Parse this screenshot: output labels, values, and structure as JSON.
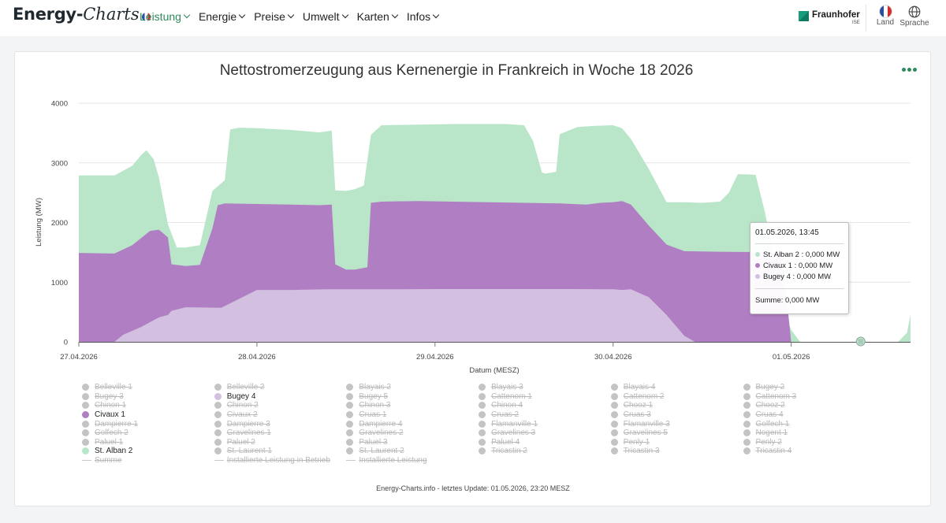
{
  "nav": {
    "logo_bold": "Energy-",
    "logo_italic": "Charts",
    "menu": [
      {
        "label": "Leistung",
        "active": true
      },
      {
        "label": "Energie",
        "active": false
      },
      {
        "label": "Preise",
        "active": false
      },
      {
        "label": "Umwelt",
        "active": false
      },
      {
        "label": "Karten",
        "active": false
      },
      {
        "label": "Infos",
        "active": false
      }
    ],
    "brand": "Fraunhofer",
    "brand_sub": "ISE",
    "land_label": "Land",
    "language_label": "Sprache"
  },
  "colors": {
    "accent": "#2e8a5c",
    "st_alban_2": "#b9e6c9",
    "civaux_1": "#b07ec2",
    "bugey_4": "#d3bfe0",
    "legend_off": "#c4c4c4"
  },
  "chart_data": {
    "type": "area",
    "stacked": true,
    "title": "Nettostromerzeugung aus Kernenergie in Frankreich in Woche 18 2026",
    "xlabel": "Datum (MESZ)",
    "ylabel": "Leistung (MW)",
    "ylim": [
      0,
      4000
    ],
    "yticks": [
      0,
      1000,
      2000,
      3000,
      4000
    ],
    "xlim": [
      0,
      4.67
    ],
    "xticks": [
      {
        "v": 0,
        "label": "27.04.2026"
      },
      {
        "v": 1,
        "label": "28.04.2026"
      },
      {
        "v": 2,
        "label": "29.04.2026"
      },
      {
        "v": 3,
        "label": "30.04.2026"
      },
      {
        "v": 4,
        "label": "01.05.2026"
      }
    ],
    "grid": true,
    "series": [
      {
        "name": "Bugey 4",
        "color": "#d3bfe0",
        "points": [
          [
            0,
            0
          ],
          [
            0.2,
            0
          ],
          [
            0.25,
            120
          ],
          [
            0.35,
            250
          ],
          [
            0.45,
            410
          ],
          [
            0.5,
            450
          ],
          [
            0.52,
            520
          ],
          [
            0.6,
            580
          ],
          [
            0.8,
            570
          ],
          [
            1.0,
            870
          ],
          [
            1.2,
            870
          ],
          [
            1.4,
            880
          ],
          [
            1.6,
            880
          ],
          [
            1.8,
            880
          ],
          [
            2.0,
            885
          ],
          [
            2.2,
            885
          ],
          [
            2.4,
            885
          ],
          [
            2.6,
            885
          ],
          [
            2.8,
            885
          ],
          [
            3.0,
            880
          ],
          [
            3.05,
            870
          ],
          [
            3.1,
            880
          ],
          [
            3.2,
            750
          ],
          [
            3.3,
            450
          ],
          [
            3.4,
            100
          ],
          [
            3.46,
            0
          ],
          [
            4.67,
            0
          ]
        ]
      },
      {
        "name": "Civaux 1",
        "color": "#b07ec2",
        "points": [
          [
            0,
            1490
          ],
          [
            0.2,
            1480
          ],
          [
            0.3,
            1620
          ],
          [
            0.4,
            1860
          ],
          [
            0.45,
            1880
          ],
          [
            0.5,
            1750
          ],
          [
            0.52,
            1300
          ],
          [
            0.6,
            1270
          ],
          [
            0.68,
            1290
          ],
          [
            0.75,
            1900
          ],
          [
            0.78,
            2290
          ],
          [
            0.82,
            2320
          ],
          [
            1.0,
            2310
          ],
          [
            1.2,
            2300
          ],
          [
            1.35,
            2290
          ],
          [
            1.42,
            2300
          ],
          [
            1.44,
            1300
          ],
          [
            1.5,
            1210
          ],
          [
            1.55,
            1210
          ],
          [
            1.62,
            1250
          ],
          [
            1.64,
            2330
          ],
          [
            1.7,
            2350
          ],
          [
            1.9,
            2360
          ],
          [
            2.1,
            2350
          ],
          [
            2.3,
            2340
          ],
          [
            2.5,
            2330
          ],
          [
            2.7,
            2320
          ],
          [
            2.85,
            2300
          ],
          [
            2.93,
            2330
          ],
          [
            3.0,
            2340
          ],
          [
            3.05,
            2360
          ],
          [
            3.1,
            2300
          ],
          [
            3.2,
            1950
          ],
          [
            3.3,
            1630
          ],
          [
            3.4,
            1520
          ],
          [
            3.6,
            1510
          ],
          [
            3.8,
            1505
          ],
          [
            3.9,
            1495
          ],
          [
            3.95,
            1450
          ],
          [
            4.0,
            0
          ],
          [
            4.67,
            0
          ]
        ]
      },
      {
        "name": "St. Alban 2",
        "color": "#b9e6c9",
        "points": [
          [
            0,
            2790
          ],
          [
            0.2,
            2790
          ],
          [
            0.3,
            2950
          ],
          [
            0.35,
            3130
          ],
          [
            0.38,
            3210
          ],
          [
            0.42,
            3060
          ],
          [
            0.45,
            2750
          ],
          [
            0.5,
            1970
          ],
          [
            0.55,
            1580
          ],
          [
            0.6,
            1580
          ],
          [
            0.68,
            1620
          ],
          [
            0.75,
            2530
          ],
          [
            0.82,
            2710
          ],
          [
            0.85,
            3560
          ],
          [
            0.9,
            3590
          ],
          [
            1.0,
            3580
          ],
          [
            1.2,
            3550
          ],
          [
            1.35,
            3510
          ],
          [
            1.42,
            3540
          ],
          [
            1.44,
            2540
          ],
          [
            1.5,
            2530
          ],
          [
            1.55,
            2560
          ],
          [
            1.6,
            2620
          ],
          [
            1.64,
            3470
          ],
          [
            1.7,
            3630
          ],
          [
            1.9,
            3640
          ],
          [
            2.1,
            3650
          ],
          [
            2.3,
            3650
          ],
          [
            2.4,
            3650
          ],
          [
            2.5,
            3630
          ],
          [
            2.55,
            3370
          ],
          [
            2.6,
            2840
          ],
          [
            2.62,
            2820
          ],
          [
            2.68,
            2850
          ],
          [
            2.7,
            3480
          ],
          [
            2.8,
            3600
          ],
          [
            2.9,
            3620
          ],
          [
            3.0,
            3630
          ],
          [
            3.05,
            3580
          ],
          [
            3.1,
            3400
          ],
          [
            3.2,
            2900
          ],
          [
            3.3,
            2340
          ],
          [
            3.4,
            2340
          ],
          [
            3.5,
            2330
          ],
          [
            3.6,
            2350
          ],
          [
            3.65,
            2500
          ],
          [
            3.7,
            2810
          ],
          [
            3.8,
            2800
          ],
          [
            3.85,
            2200
          ],
          [
            3.9,
            1500
          ],
          [
            3.95,
            600
          ],
          [
            4.0,
            200
          ],
          [
            4.05,
            0
          ],
          [
            4.6,
            0
          ],
          [
            4.65,
            150
          ],
          [
            4.67,
            450
          ]
        ]
      }
    ],
    "tooltip": {
      "title": "01.05.2026, 13:45",
      "rows": [
        {
          "name": "St. Alban 2",
          "value": "0,000 MW",
          "color": "#b9e6c9"
        },
        {
          "name": "Civaux 1",
          "value": "0,000 MW",
          "color": "#b07ec2"
        },
        {
          "name": "Bugey 4",
          "value": "0,000 MW",
          "color": "#d3bfe0"
        }
      ],
      "sum_label": "Summe",
      "sum_value": "0,000 MW",
      "x": 4.39
    },
    "legend": [
      [
        "Belleville 1",
        "Bugey 3",
        "Chinon 1",
        "Civaux 1",
        "Dampierre 1",
        "Golfech 2",
        "Paluel 1",
        "St. Alban 2",
        "Summe"
      ],
      [
        "Belleville 2",
        "Bugey 4",
        "Chinon 2",
        "Civaux 2",
        "Dampierre 3",
        "Gravelines 1",
        "Paluel 2",
        "St. Laurent 1",
        "Installierte Leistung in Betrieb"
      ],
      [
        "Blayais 2",
        "Bugey 5",
        "Chinon 3",
        "Cruas 1",
        "Dampierre 4",
        "Gravelines 2",
        "Paluel 3",
        "St. Laurent 2",
        "Installierte Leistung"
      ],
      [
        "Blayais 3",
        "Cattenom 1",
        "Chinon 4",
        "Cruas 2",
        "Flamanville 1",
        "Gravelines 3",
        "Paluel 4",
        "Tricastin 2"
      ],
      [
        "Blayais 4",
        "Cattenom 2",
        "Chooz 1",
        "Cruas 3",
        "Flamanville 3",
        "Gravelines 5",
        "Penly 1",
        "Tricastin 3"
      ],
      [
        "Bugey 2",
        "Cattenom 3",
        "Chooz 2",
        "Cruas 4",
        "Golfech 1",
        "Nogent 1",
        "Penly 2",
        "Tricastin 4"
      ]
    ],
    "legend_active": [
      "Civaux 1",
      "Bugey 4",
      "St. Alban 2"
    ],
    "legend_lines": [
      "Summe",
      "Installierte Leistung in Betrieb",
      "Installierte Leistung"
    ]
  },
  "footer": "Energy-Charts.info - letztes Update: 01.05.2026, 23:20 MESZ"
}
